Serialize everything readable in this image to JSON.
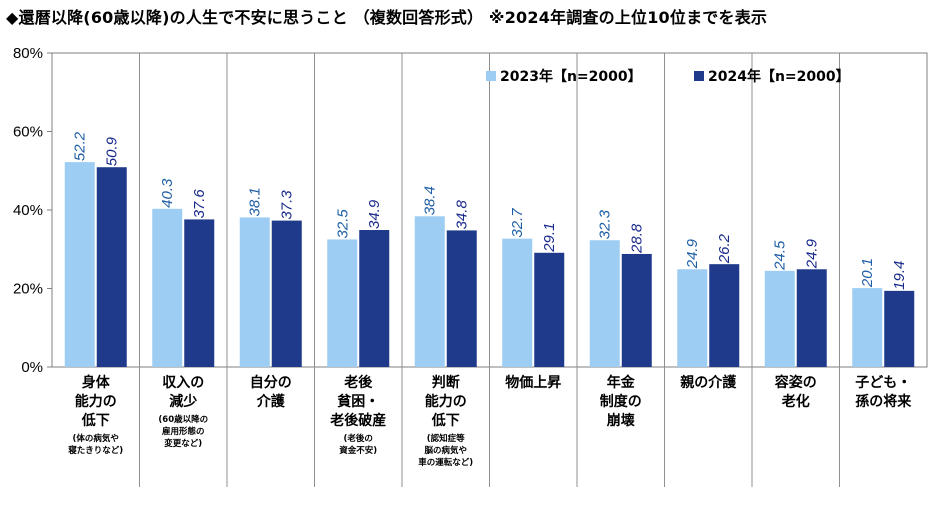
{
  "title": "◆還暦以降(60歳以降)の人生で不安に思うこと （複数回答形式） ※2024年調査の上位10位までを表示",
  "chart_data": {
    "type": "bar",
    "ylim": [
      0,
      80
    ],
    "yticks": [
      "0%",
      "20%",
      "40%",
      "60%",
      "80%"
    ],
    "grid": false,
    "legend_position": "top-right",
    "categories": [
      {
        "lines": [
          "身体",
          "能力の",
          "低下"
        ],
        "note": [
          "(体の病気や",
          "寝たきりなど)"
        ]
      },
      {
        "lines": [
          "収入の",
          "減少"
        ],
        "note": [
          "(60歳以降の",
          "雇用形態の",
          "変更など)"
        ]
      },
      {
        "lines": [
          "自分の",
          "介護"
        ],
        "note": []
      },
      {
        "lines": [
          "老後",
          "貧困・",
          "老後破産"
        ],
        "note": [
          "(老後の",
          "資金不安)"
        ]
      },
      {
        "lines": [
          "判断",
          "能力の",
          "低下"
        ],
        "note": [
          "(認知症等",
          "脳の病気や",
          "車の運転など)"
        ]
      },
      {
        "lines": [
          "物価上昇"
        ],
        "note": []
      },
      {
        "lines": [
          "年金",
          "制度の",
          "崩壊"
        ],
        "note": []
      },
      {
        "lines": [
          "親の介護"
        ],
        "note": []
      },
      {
        "lines": [
          "容姿の",
          "老化"
        ],
        "note": []
      },
      {
        "lines": [
          "子ども・",
          "孫の将来"
        ],
        "note": []
      }
    ],
    "series": [
      {
        "name": "2023年【n=2000】",
        "color": "#9ecdf3",
        "label_color": "#1f5fa6",
        "values": [
          52.2,
          40.3,
          38.1,
          32.5,
          38.4,
          32.7,
          32.3,
          24.9,
          24.5,
          20.1
        ]
      },
      {
        "name": "2024年【n=2000】",
        "color": "#1f3a8a",
        "label_color": "#1a2a8c",
        "values": [
          50.9,
          37.6,
          37.3,
          34.9,
          34.8,
          29.1,
          28.8,
          26.2,
          24.9,
          19.4
        ]
      }
    ]
  }
}
